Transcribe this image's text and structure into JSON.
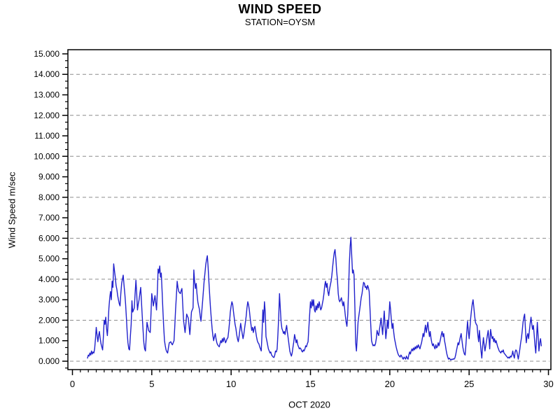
{
  "header": {
    "title": "WIND SPEED",
    "subtitle": "STATION=OYSM"
  },
  "chart_data": {
    "type": "line",
    "title": "WIND SPEED",
    "subtitle": "STATION=OYSM",
    "xlabel": "OCT 2020",
    "ylabel": "Wind Speed m/sec",
    "xlim": [
      0,
      30
    ],
    "ylim": [
      0,
      15
    ],
    "x_ticks": [
      0,
      5,
      10,
      15,
      20,
      25,
      30
    ],
    "x_minor_step": 0.5,
    "y_ticks": [
      {
        "value": 0,
        "label": "0.000"
      },
      {
        "value": 1,
        "label": "1.000"
      },
      {
        "value": 2,
        "label": "2.000"
      },
      {
        "value": 3,
        "label": "3.000"
      },
      {
        "value": 4,
        "label": "4.000"
      },
      {
        "value": 5,
        "label": "5.000"
      },
      {
        "value": 6,
        "label": "6.000"
      },
      {
        "value": 7,
        "label": "7.000"
      },
      {
        "value": 8,
        "label": "8.000"
      },
      {
        "value": 9,
        "label": "9.000"
      },
      {
        "value": 10,
        "label": "10.000"
      },
      {
        "value": 11,
        "label": "11.000"
      },
      {
        "value": 12,
        "label": "12.000"
      },
      {
        "value": 13,
        "label": "13.000"
      },
      {
        "value": 14,
        "label": "14.000"
      },
      {
        "value": 15,
        "label": "15.000"
      }
    ],
    "gridlines_at": [
      0,
      2,
      4,
      6,
      8,
      10,
      12,
      14
    ],
    "grid_style": "dashed",
    "grid_color": "#8c8c8c",
    "line_color": "#2121cc",
    "axis_color": "#000000",
    "legend": "none",
    "series": [
      {
        "name": "Wind Speed",
        "start_day": 0.95,
        "step": 0.05,
        "values": [
          0.15,
          0.3,
          0.25,
          0.4,
          0.3,
          0.5,
          0.35,
          0.45,
          0.4,
          0.6,
          1.1,
          1.65,
          1.3,
          0.95,
          1.25,
          1.45,
          1.1,
          0.85,
          0.7,
          0.55,
          1.2,
          2.0,
          1.8,
          2.15,
          1.6,
          1.25,
          1.9,
          2.6,
          3.1,
          3.4,
          3.0,
          3.9,
          3.6,
          4.75,
          4.4,
          4.1,
          3.7,
          3.5,
          3.2,
          3.0,
          2.8,
          2.7,
          3.3,
          3.8,
          4.0,
          4.2,
          3.7,
          3.3,
          2.8,
          2.1,
          1.4,
          0.9,
          0.6,
          0.55,
          1.2,
          1.8,
          2.95,
          2.4,
          2.5,
          2.6,
          3.3,
          3.95,
          3.3,
          2.5,
          2.8,
          3.0,
          3.3,
          3.6,
          2.9,
          2.2,
          1.5,
          0.9,
          0.6,
          0.5,
          1.2,
          1.9,
          1.7,
          1.5,
          1.45,
          1.4,
          2.3,
          3.3,
          3.0,
          2.7,
          2.95,
          3.2,
          2.85,
          2.5,
          3.4,
          4.5,
          4.3,
          4.65,
          4.1,
          4.3,
          3.4,
          2.5,
          1.7,
          1.0,
          0.75,
          0.55,
          0.45,
          0.4,
          0.65,
          0.9,
          0.92,
          0.95,
          0.85,
          0.8,
          0.9,
          1.0,
          1.7,
          2.5,
          3.2,
          3.9,
          3.6,
          3.4,
          3.35,
          3.3,
          3.45,
          3.55,
          2.8,
          2.0,
          1.7,
          1.4,
          1.85,
          2.3,
          2.2,
          2.1,
          1.7,
          1.3,
          1.85,
          2.4,
          2.5,
          2.6,
          4.45,
          3.9,
          3.55,
          3.8,
          3.3,
          2.9,
          2.7,
          2.55,
          2.2,
          1.95,
          2.4,
          2.9,
          3.4,
          3.9,
          4.3,
          4.7,
          4.95,
          5.15,
          4.6,
          3.9,
          3.2,
          2.6,
          2.1,
          1.6,
          1.25,
          1.0,
          1.2,
          1.35,
          1.1,
          0.9,
          0.8,
          0.75,
          0.7,
          0.85,
          1.0,
          0.9,
          1.1,
          0.95,
          1.15,
          1.05,
          0.9,
          1.0,
          1.1,
          1.15,
          1.5,
          1.9,
          2.4,
          2.7,
          2.9,
          2.77,
          2.4,
          2.1,
          1.8,
          1.6,
          1.3,
          1.1,
          0.95,
          1.2,
          1.5,
          1.85,
          1.6,
          1.35,
          1.1,
          1.3,
          1.6,
          1.9,
          2.2,
          2.6,
          2.9,
          2.75,
          2.5,
          2.1,
          1.8,
          1.5,
          1.65,
          1.4,
          1.6,
          1.7,
          1.45,
          1.2,
          1.0,
          0.9,
          0.85,
          0.7,
          0.6,
          0.5,
          1.4,
          2.5,
          1.9,
          2.9,
          2.4,
          1.2,
          1.0,
          0.8,
          0.6,
          0.5,
          0.4,
          0.45,
          0.3,
          0.25,
          0.2,
          0.18,
          0.3,
          0.5,
          0.45,
          0.6,
          1.3,
          2.2,
          3.3,
          2.6,
          1.9,
          1.6,
          1.5,
          1.35,
          1.45,
          1.3,
          1.55,
          1.75,
          1.4,
          1.1,
          0.8,
          0.5,
          0.35,
          0.25,
          0.4,
          0.7,
          0.95,
          1.3,
          1.1,
          0.9,
          1.05,
          0.8,
          0.7,
          0.6,
          0.65,
          0.6,
          0.5,
          0.45,
          0.55,
          0.5,
          0.6,
          0.75,
          0.7,
          0.85,
          0.95,
          1.6,
          2.3,
          2.9,
          2.6,
          3.0,
          2.7,
          3.0,
          2.5,
          2.4,
          2.7,
          2.5,
          2.8,
          2.6,
          2.9,
          2.7,
          2.5,
          2.6,
          2.8,
          3.0,
          3.3,
          3.7,
          3.9,
          3.6,
          3.8,
          3.4,
          3.2,
          3.5,
          3.7,
          3.9,
          4.2,
          4.6,
          5.0,
          5.3,
          5.45,
          5.0,
          4.4,
          4.0,
          3.3,
          3.0,
          2.9,
          3.0,
          3.1,
          2.9,
          2.7,
          2.9,
          2.6,
          2.2,
          1.9,
          1.7,
          2.3,
          3.4,
          4.7,
          5.6,
          6.05,
          5.2,
          4.3,
          4.45,
          4.2,
          2.6,
          0.9,
          0.5,
          1.2,
          1.9,
          2.2,
          2.5,
          2.8,
          3.1,
          3.3,
          3.6,
          3.85,
          3.8,
          3.6,
          3.65,
          3.5,
          3.7,
          3.6,
          3.4,
          2.6,
          1.8,
          1.0,
          0.85,
          0.75,
          0.8,
          0.75,
          0.85,
          1.1,
          1.5,
          1.35,
          1.25,
          1.55,
          1.8,
          2.1,
          1.7,
          1.3,
          1.9,
          2.45,
          1.8,
          1.1,
          1.5,
          2.0,
          1.6,
          2.2,
          2.9,
          2.5,
          2.0,
          1.6,
          1.85,
          1.4,
          1.1,
          0.9,
          0.7,
          0.55,
          0.4,
          0.3,
          0.25,
          0.2,
          0.3,
          0.25,
          0.15,
          0.1,
          0.2,
          0.15,
          0.1,
          0.25,
          0.15,
          0.1,
          0.3,
          0.45,
          0.35,
          0.5,
          0.6,
          0.5,
          0.65,
          0.55,
          0.7,
          0.6,
          0.75,
          0.65,
          0.8,
          0.7,
          0.6,
          0.75,
          0.9,
          1.1,
          1.35,
          1.2,
          1.5,
          1.76,
          1.4,
          1.65,
          1.9,
          1.5,
          1.2,
          1.45,
          1.1,
          0.9,
          0.75,
          0.85,
          0.7,
          0.6,
          0.8,
          0.65,
          0.7,
          0.9,
          0.75,
          0.9,
          1.1,
          1.3,
          1.45,
          1.2,
          1.35,
          1.0,
          0.8,
          0.55,
          0.35,
          0.2,
          0.1,
          0.15,
          0.1,
          0.05,
          0.1,
          0.08,
          0.12,
          0.1,
          0.15,
          0.3,
          0.5,
          0.7,
          0.9,
          0.8,
          1.0,
          1.2,
          1.35,
          1.0,
          0.7,
          0.5,
          0.35,
          0.3,
          0.8,
          1.4,
          1.95,
          1.5,
          1.1,
          1.6,
          2.1,
          2.5,
          2.8,
          3.0,
          2.6,
          2.2,
          1.9,
          1.8,
          1.75,
          1.3,
          0.95,
          1.5,
          1.0,
          0.5,
          0.15,
          0.7,
          1.15,
          0.8,
          0.5,
          0.75,
          1.0,
          1.25,
          1.5,
          1.1,
          0.6,
          1.55,
          1.3,
          1.1,
          1.2,
          0.95,
          1.1,
          0.9,
          1.0,
          0.85,
          0.7,
          0.6,
          0.5,
          0.45,
          0.4,
          0.5,
          0.45,
          0.55,
          0.4,
          0.35,
          0.3,
          0.25,
          0.2,
          0.15,
          0.2,
          0.15,
          0.25,
          0.2,
          0.3,
          0.5,
          0.3,
          0.15,
          0.45,
          0.55,
          0.5,
          0.3,
          0.1,
          0.35,
          0.6,
          0.9,
          1.15,
          1.5,
          1.9,
          2.15,
          2.3,
          1.6,
          0.9,
          1.2,
          1.35,
          1.1,
          1.5,
          1.85,
          2.15,
          1.8,
          1.55,
          1.75,
          1.3,
          0.8,
          0.4,
          1.1,
          1.9,
          1.2,
          0.5,
          0.9,
          1.1,
          0.75
        ]
      }
    ]
  }
}
